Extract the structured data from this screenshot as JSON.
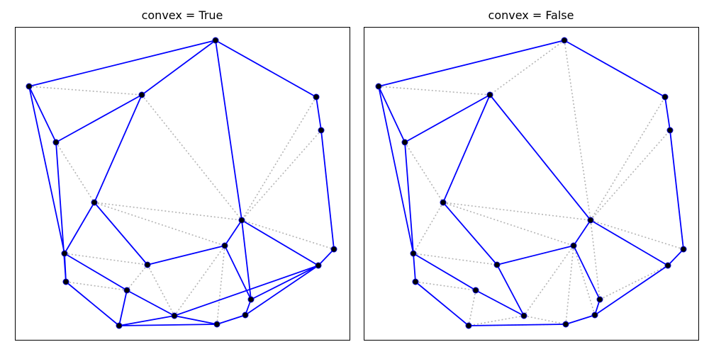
{
  "panels": [
    {
      "title": "convex = True",
      "points": [
        [
          304,
          57
        ],
        [
          41,
          122
        ],
        [
          200,
          134
        ],
        [
          446,
          137
        ],
        [
          453,
          184
        ],
        [
          79,
          201
        ],
        [
          133,
          286
        ],
        [
          341,
          311
        ],
        [
          317,
          347
        ],
        [
          471,
          352
        ],
        [
          91,
          358
        ],
        [
          208,
          374
        ],
        [
          449,
          375
        ],
        [
          93,
          398
        ],
        [
          179,
          410
        ],
        [
          354,
          423
        ],
        [
          346,
          445
        ],
        [
          246,
          446
        ],
        [
          306,
          458
        ],
        [
          168,
          460
        ]
      ],
      "dotted_edges": [
        [
          1,
          2
        ],
        [
          2,
          6
        ],
        [
          2,
          7
        ],
        [
          0,
          7
        ],
        [
          3,
          7
        ],
        [
          4,
          7
        ],
        [
          4,
          9
        ],
        [
          7,
          9
        ],
        [
          7,
          12
        ],
        [
          6,
          7
        ],
        [
          6,
          8
        ],
        [
          1,
          10
        ],
        [
          5,
          6
        ],
        [
          10,
          11
        ],
        [
          11,
          14
        ],
        [
          13,
          14
        ],
        [
          14,
          17
        ],
        [
          11,
          17
        ],
        [
          8,
          11
        ],
        [
          8,
          17
        ],
        [
          8,
          18
        ],
        [
          7,
          15
        ],
        [
          8,
          15
        ],
        [
          14,
          19
        ],
        [
          16,
          18
        ]
      ],
      "solid_edges": [
        [
          0,
          1
        ],
        [
          0,
          2
        ],
        [
          0,
          3
        ],
        [
          3,
          4
        ],
        [
          4,
          9
        ],
        [
          9,
          12
        ],
        [
          12,
          16
        ],
        [
          16,
          18
        ],
        [
          18,
          19
        ],
        [
          19,
          13
        ],
        [
          13,
          10
        ],
        [
          10,
          1
        ],
        [
          1,
          5
        ],
        [
          5,
          2
        ],
        [
          5,
          13
        ],
        [
          2,
          6
        ],
        [
          6,
          10
        ],
        [
          6,
          11
        ],
        [
          0,
          7
        ],
        [
          7,
          8
        ],
        [
          8,
          11
        ],
        [
          7,
          12
        ],
        [
          7,
          15
        ],
        [
          15,
          16
        ],
        [
          12,
          15
        ],
        [
          10,
          14
        ],
        [
          14,
          17
        ],
        [
          14,
          19
        ],
        [
          19,
          17
        ],
        [
          17,
          18
        ],
        [
          17,
          12
        ],
        [
          8,
          15
        ]
      ]
    },
    {
      "title": "convex = False",
      "points": [
        [
          796,
          57
        ],
        [
          534,
          122
        ],
        [
          691,
          134
        ],
        [
          938,
          137
        ],
        [
          945,
          184
        ],
        [
          571,
          201
        ],
        [
          625,
          286
        ],
        [
          833,
          311
        ],
        [
          809,
          347
        ],
        [
          964,
          352
        ],
        [
          583,
          358
        ],
        [
          701,
          374
        ],
        [
          942,
          375
        ],
        [
          586,
          398
        ],
        [
          671,
          410
        ],
        [
          846,
          423
        ],
        [
          839,
          445
        ],
        [
          739,
          446
        ],
        [
          798,
          458
        ],
        [
          661,
          460
        ]
      ],
      "dotted_edges": [
        [
          0,
          2
        ],
        [
          0,
          7
        ],
        [
          0,
          3
        ],
        [
          1,
          2
        ],
        [
          2,
          6
        ],
        [
          6,
          7
        ],
        [
          7,
          3
        ],
        [
          7,
          4
        ],
        [
          4,
          9
        ],
        [
          7,
          9
        ],
        [
          7,
          12
        ],
        [
          1,
          5
        ],
        [
          5,
          6
        ],
        [
          6,
          10
        ],
        [
          6,
          8
        ],
        [
          10,
          11
        ],
        [
          13,
          14
        ],
        [
          14,
          17
        ],
        [
          11,
          17
        ],
        [
          8,
          11
        ],
        [
          8,
          17
        ],
        [
          8,
          18
        ],
        [
          7,
          15
        ],
        [
          8,
          16
        ],
        [
          14,
          19
        ],
        [
          16,
          18
        ],
        [
          17,
          18
        ],
        [
          12,
          15
        ],
        [
          18,
          19
        ],
        [
          17,
          19
        ],
        [
          7,
          8
        ]
      ],
      "solid_edges": [
        [
          0,
          1
        ],
        [
          0,
          3
        ],
        [
          3,
          4
        ],
        [
          4,
          9
        ],
        [
          9,
          12
        ],
        [
          12,
          16
        ],
        [
          16,
          18
        ],
        [
          18,
          19
        ],
        [
          19,
          13
        ],
        [
          13,
          10
        ],
        [
          10,
          1
        ],
        [
          1,
          5
        ],
        [
          5,
          2
        ],
        [
          5,
          10
        ],
        [
          2,
          6
        ],
        [
          2,
          7
        ],
        [
          6,
          11
        ],
        [
          7,
          8
        ],
        [
          8,
          11
        ],
        [
          7,
          12
        ],
        [
          8,
          15
        ],
        [
          15,
          16
        ],
        [
          10,
          14
        ],
        [
          14,
          17
        ],
        [
          11,
          17
        ]
      ]
    }
  ],
  "colors": {
    "solid": "#0000ff",
    "dotted": "#b4b4b4",
    "vertex": "#000000"
  }
}
